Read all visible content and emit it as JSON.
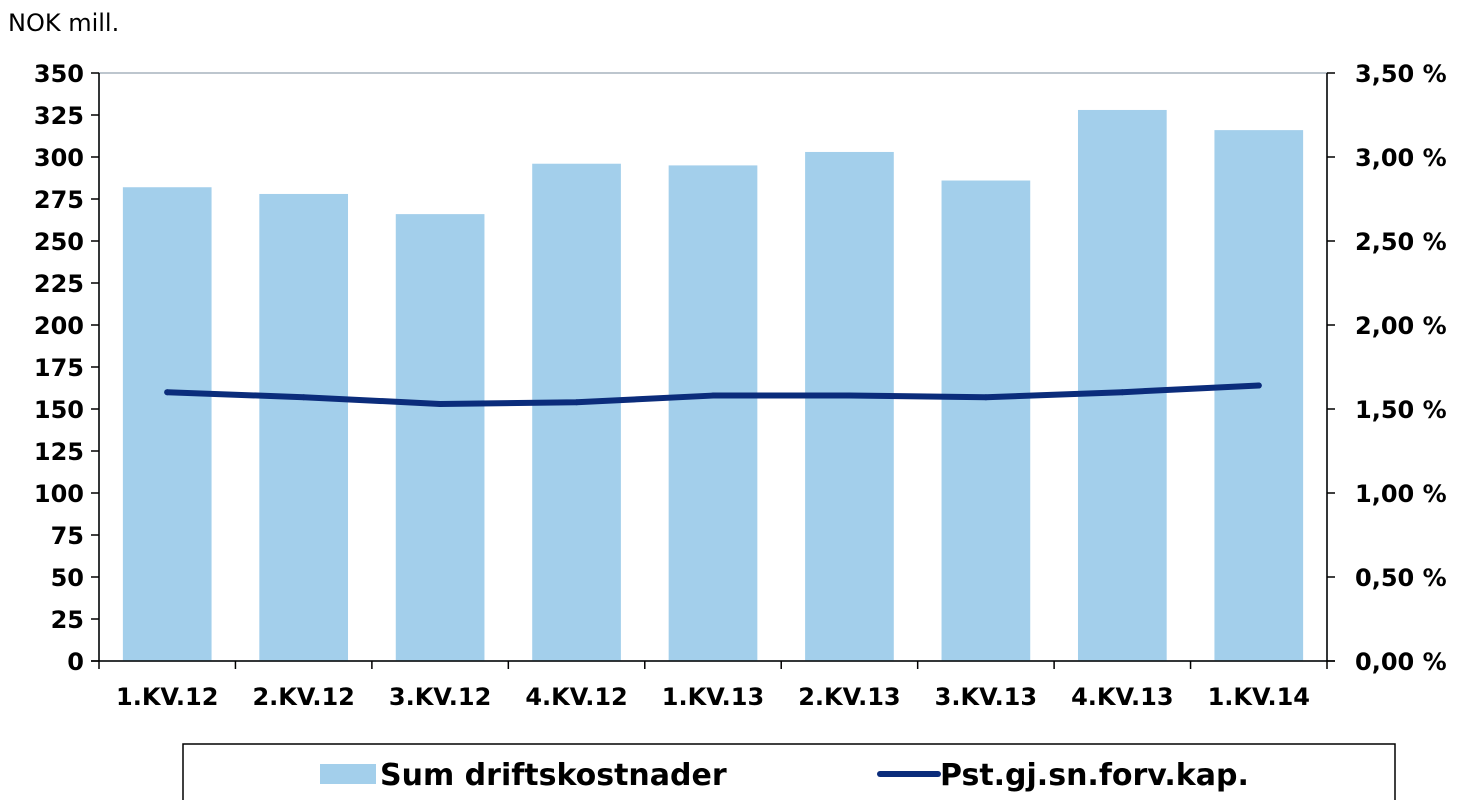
{
  "chart_data": {
    "type": "bar",
    "unit_label": "NOK mill.",
    "categories": [
      "1.KV.12",
      "2.KV.12",
      "3.KV.12",
      "4.KV.12",
      "1.KV.13",
      "2.KV.13",
      "3.KV.13",
      "4.KV.13",
      "1.KV.14"
    ],
    "series": [
      {
        "name": "Sum driftskostnader",
        "type": "bar",
        "axis": "left",
        "color": "#a3cfeb",
        "values": [
          282,
          278,
          266,
          296,
          295,
          303,
          286,
          328,
          316
        ]
      },
      {
        "name": "Pst.gj.sn.forv.kap.",
        "type": "line",
        "axis": "right",
        "color": "#0b2c7b",
        "values": [
          1.6,
          1.57,
          1.53,
          1.54,
          1.58,
          1.58,
          1.57,
          1.6,
          1.64
        ]
      }
    ],
    "left_axis": {
      "ylim": [
        0,
        350
      ],
      "ticks": [
        0,
        25,
        50,
        75,
        100,
        125,
        150,
        175,
        200,
        225,
        250,
        275,
        300,
        325,
        350
      ],
      "tick_labels": [
        "0",
        "25",
        "50",
        "75",
        "100",
        "125",
        "150",
        "175",
        "200",
        "225",
        "250",
        "275",
        "300",
        "325",
        "350"
      ]
    },
    "right_axis": {
      "ylim": [
        0,
        3.5
      ],
      "ticks": [
        0,
        0.5,
        1.0,
        1.5,
        2.0,
        2.5,
        3.0,
        3.5
      ],
      "tick_labels": [
        "0,00 %",
        "0,50 %",
        "1,00 %",
        "1,50 %",
        "2,00 %",
        "2,50 %",
        "3,00 %",
        "3,50 %"
      ]
    },
    "grid": false,
    "legend_position": "bottom"
  }
}
